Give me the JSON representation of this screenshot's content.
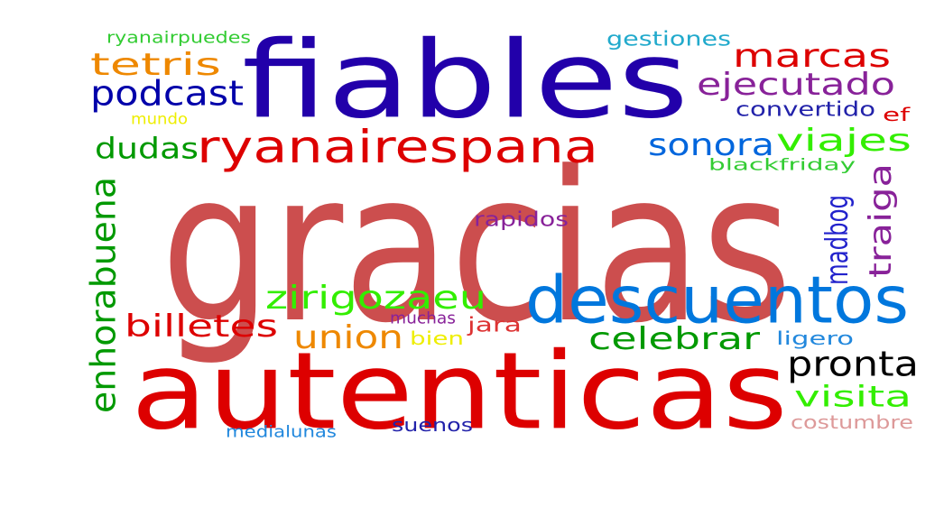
{
  "words": [
    {
      "text": "gracias",
      "color": "#cc4e4e",
      "vertical": false
    },
    {
      "text": "fiables",
      "color": "#2200aa",
      "vertical": false
    },
    {
      "text": "autenticas",
      "color": "#dd0000",
      "vertical": false
    },
    {
      "text": "descuentos",
      "color": "#0077dd",
      "vertical": false
    },
    {
      "text": "ryanairespana",
      "color": "#dd0000",
      "vertical": false
    },
    {
      "text": "enhorabuena",
      "color": "#009900",
      "vertical": true
    },
    {
      "text": "madbog",
      "color": "#2222cc",
      "vertical": true
    },
    {
      "text": "traiga",
      "color": "#882299",
      "vertical": true
    },
    {
      "text": "zirigozaeu",
      "color": "#33ee00",
      "vertical": false
    },
    {
      "text": "pronta",
      "color": "#000000",
      "vertical": false
    },
    {
      "text": "podcast",
      "color": "#0000aa",
      "vertical": false
    },
    {
      "text": "marcas",
      "color": "#dd0000",
      "vertical": false
    },
    {
      "text": "tetris",
      "color": "#ee8800",
      "vertical": false
    },
    {
      "text": "ejecutado",
      "color": "#882299",
      "vertical": false
    },
    {
      "text": "sonora",
      "color": "#0066dd",
      "vertical": false
    },
    {
      "text": "viajes",
      "color": "#33ee00",
      "vertical": false
    },
    {
      "text": "celebrar",
      "color": "#009900",
      "vertical": false
    },
    {
      "text": "billetes",
      "color": "#dd0000",
      "vertical": false
    },
    {
      "text": "union",
      "color": "#ee8800",
      "vertical": false
    },
    {
      "text": "visita",
      "color": "#33ee00",
      "vertical": false
    },
    {
      "text": "dudas",
      "color": "#009900",
      "vertical": false
    },
    {
      "text": "gestiones",
      "color": "#22aacc",
      "vertical": false
    },
    {
      "text": "convertido",
      "color": "#2222aa",
      "vertical": false
    },
    {
      "text": "ryanairpuedes",
      "color": "#33cc33",
      "vertical": false
    },
    {
      "text": "mundo",
      "color": "#eeee00",
      "vertical": false
    },
    {
      "text": "ef",
      "color": "#dd0000",
      "vertical": false
    },
    {
      "text": "blackfriday",
      "color": "#33cc33",
      "vertical": false
    },
    {
      "text": "rapidos",
      "color": "#882299",
      "vertical": false
    },
    {
      "text": "muchas",
      "color": "#882299",
      "vertical": false
    },
    {
      "text": "jara",
      "color": "#dd3333",
      "vertical": false
    },
    {
      "text": "bien",
      "color": "#eeee00",
      "vertical": false
    },
    {
      "text": "ligero",
      "color": "#2288dd",
      "vertical": false
    },
    {
      "text": "costumbre",
      "color": "#dd9999",
      "vertical": false
    },
    {
      "text": "suenos",
      "color": "#2222aa",
      "vertical": false
    },
    {
      "text": "medialunas",
      "color": "#2288dd",
      "vertical": false
    }
  ]
}
